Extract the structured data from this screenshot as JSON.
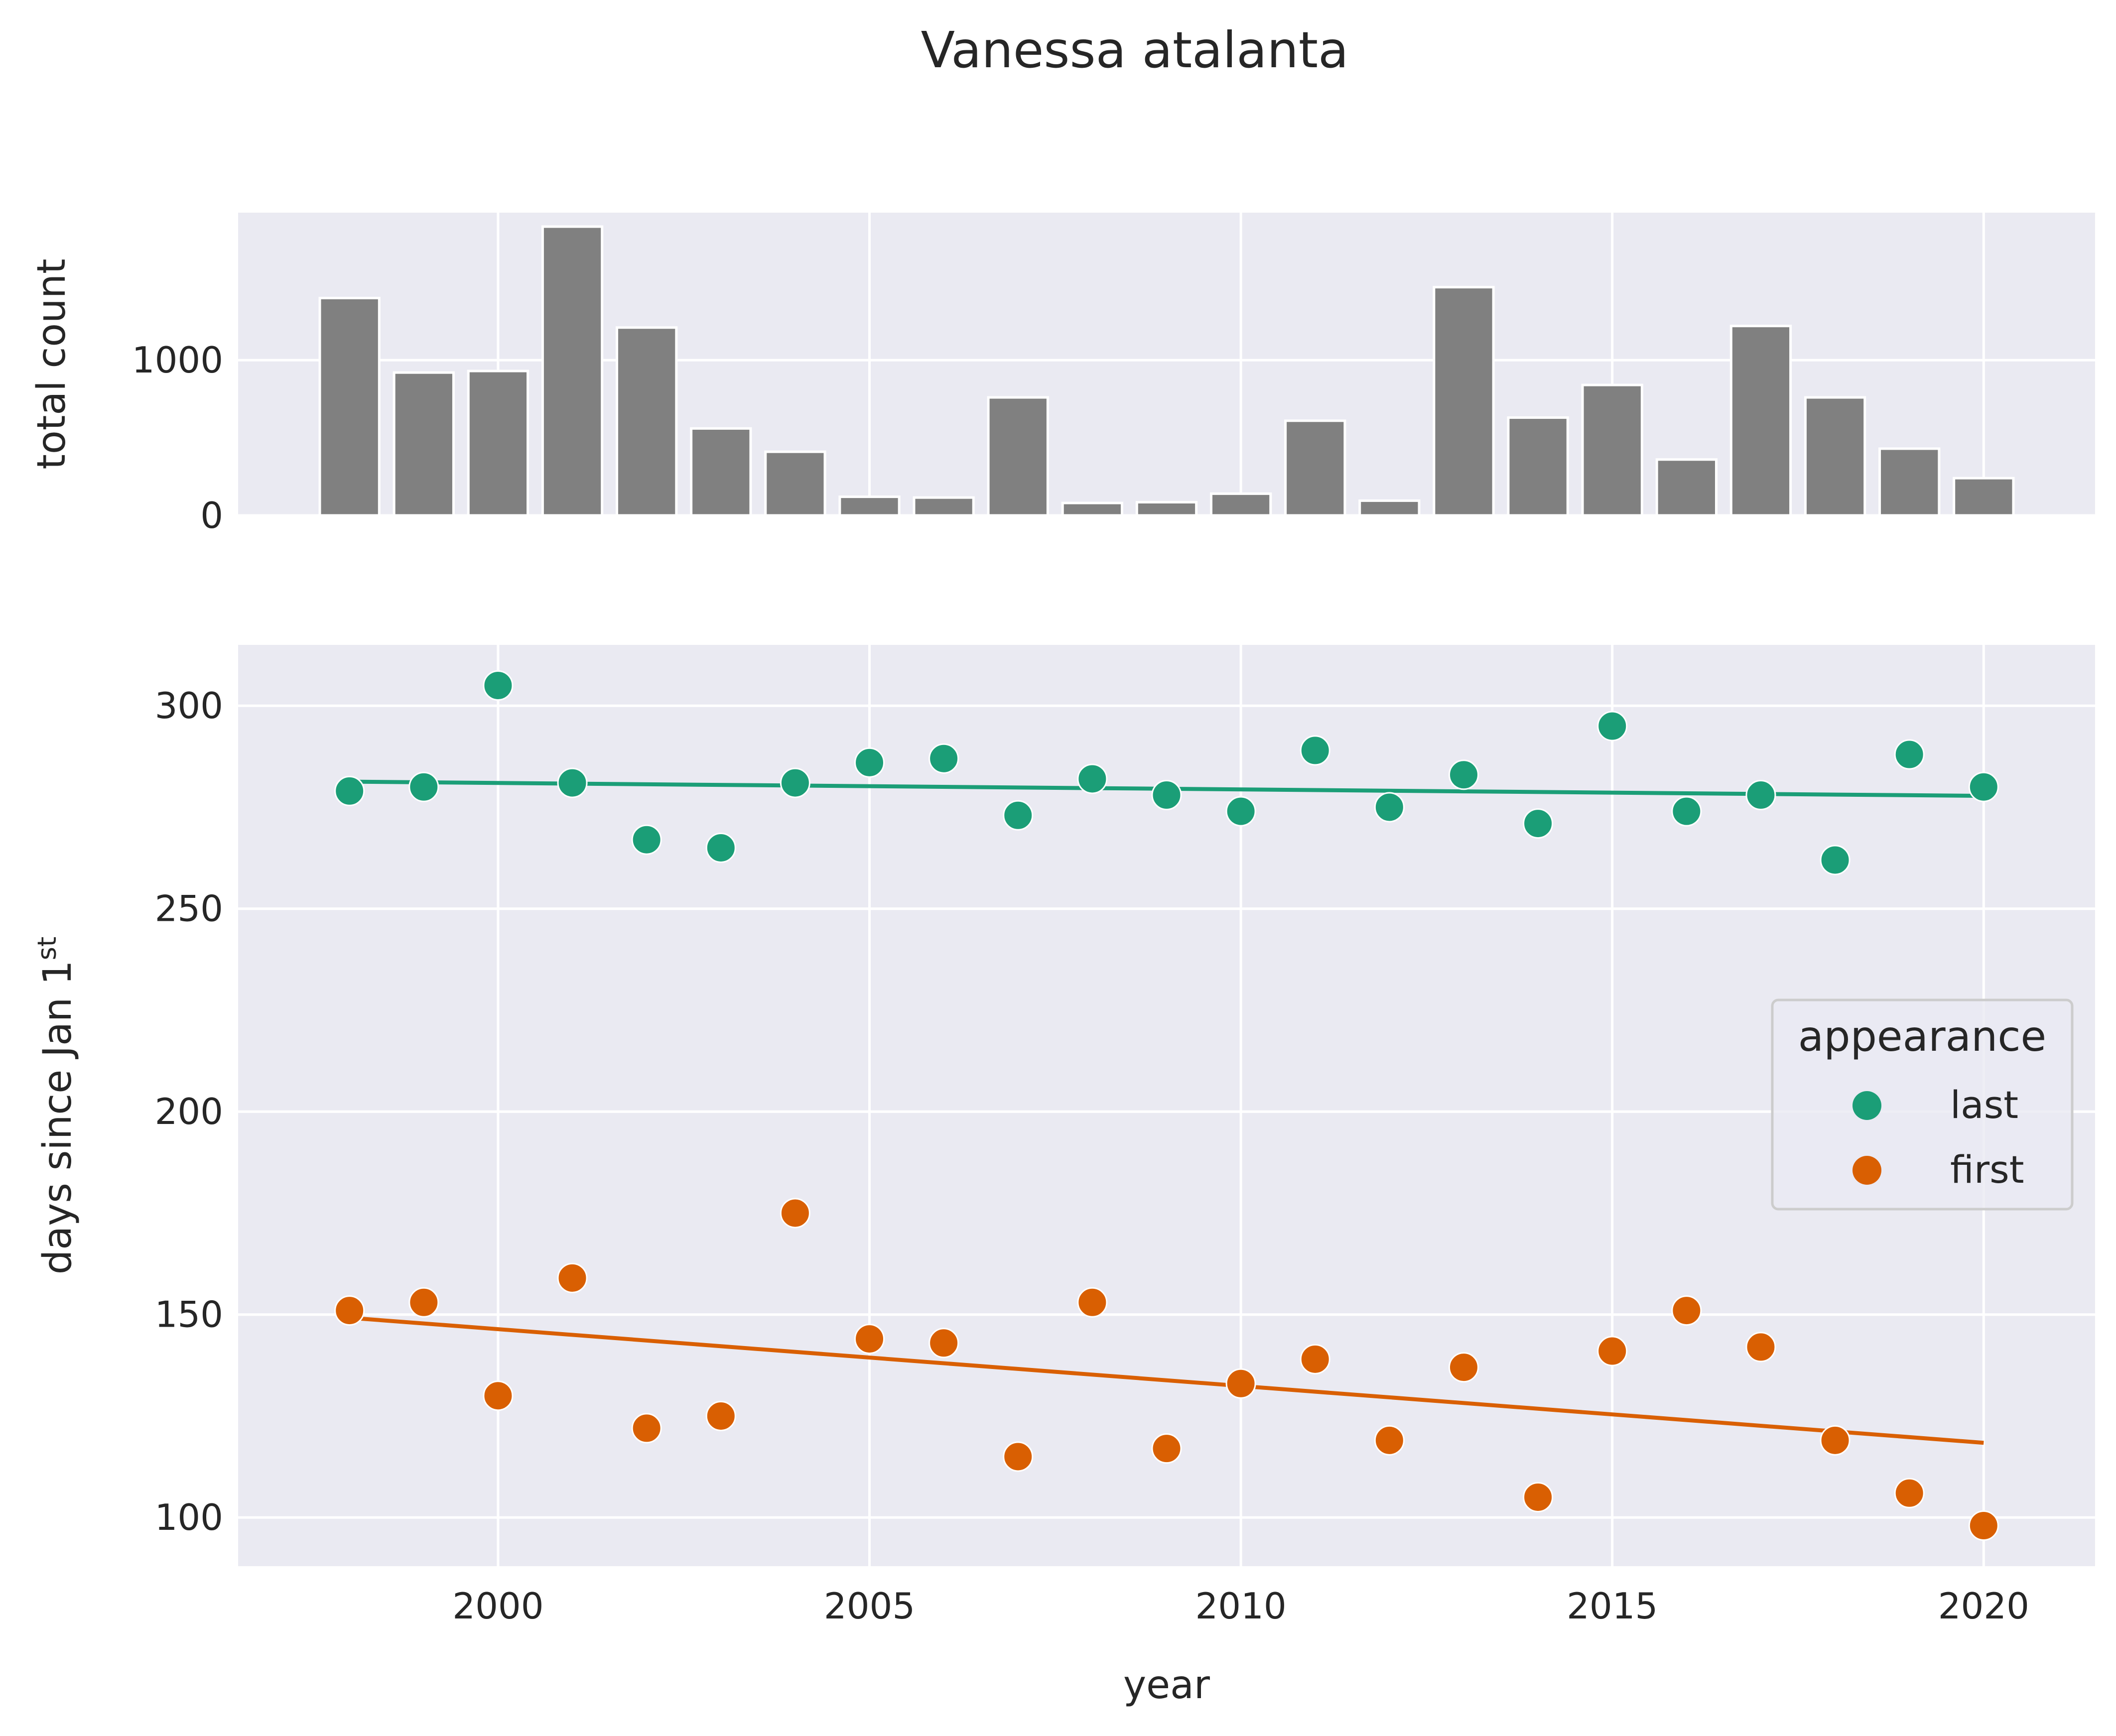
{
  "chart_data": [
    {
      "type": "bar",
      "title": "Vanessa atalanta",
      "ylabel": "total count",
      "xlabel": "",
      "x": [
        1998,
        1999,
        2000,
        2001,
        2002,
        2003,
        2004,
        2005,
        2006,
        2007,
        2008,
        2009,
        2010,
        2011,
        2012,
        2013,
        2014,
        2015,
        2016,
        2017,
        2018,
        2019,
        2020
      ],
      "values": [
        1400,
        920,
        930,
        1860,
        1210,
        560,
        410,
        120,
        115,
        760,
        80,
        85,
        140,
        610,
        95,
        1470,
        630,
        840,
        360,
        1220,
        760,
        430,
        240
      ],
      "xlim": [
        1996.5,
        2021.5
      ],
      "ylim": [
        0,
        1950
      ],
      "yticks": [
        0,
        1000
      ],
      "xticks": [
        2000,
        2005,
        2010,
        2015,
        2020
      ],
      "bar_color": "#808080",
      "grid": true
    },
    {
      "type": "scatter",
      "xlabel": "year",
      "ylabel": "days since Jan 1",
      "ylabel_sup": "st",
      "xlim": [
        1996.5,
        2021.5
      ],
      "ylim": [
        88,
        315
      ],
      "xticks": [
        2000,
        2005,
        2010,
        2015,
        2020
      ],
      "yticks": [
        100,
        150,
        200,
        250,
        300
      ],
      "grid": true,
      "legend": {
        "title": "appearance",
        "placement": "center-right"
      },
      "series": [
        {
          "name": "last",
          "color": "#1b9e77",
          "x": [
            1998,
            1999,
            2000,
            2001,
            2002,
            2003,
            2004,
            2005,
            2006,
            2007,
            2008,
            2009,
            2010,
            2011,
            2012,
            2013,
            2014,
            2015,
            2016,
            2017,
            2018,
            2019,
            2020
          ],
          "values": [
            279,
            280,
            305,
            281,
            267,
            265,
            281,
            286,
            287,
            273,
            282,
            278,
            274,
            289,
            275,
            283,
            271,
            295,
            274,
            278,
            262,
            288,
            280
          ],
          "trend": {
            "x": [
              1998,
              2020
            ],
            "y": [
              281.3,
              277.8
            ]
          }
        },
        {
          "name": "first",
          "color": "#d95f02",
          "x": [
            1998,
            1999,
            2000,
            2001,
            2002,
            2003,
            2004,
            2005,
            2006,
            2007,
            2008,
            2009,
            2010,
            2011,
            2012,
            2013,
            2014,
            2015,
            2016,
            2017,
            2018,
            2019,
            2020
          ],
          "values": [
            151,
            153,
            130,
            159,
            122,
            125,
            175,
            144,
            143,
            115,
            153,
            117,
            133,
            139,
            119,
            137,
            105,
            141,
            151,
            142,
            119,
            106,
            98
          ],
          "trend": {
            "x": [
              1998,
              2020
            ],
            "y": [
              149.2,
              118.4
            ]
          }
        }
      ]
    }
  ]
}
